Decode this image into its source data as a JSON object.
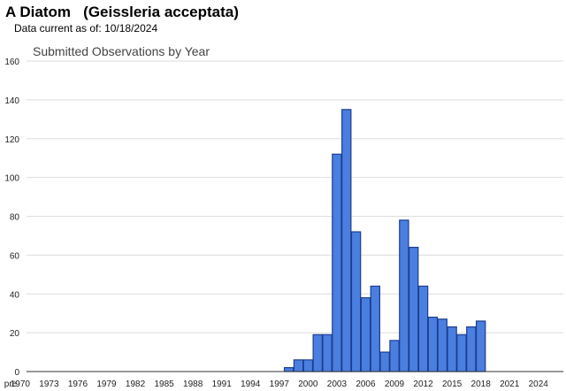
{
  "header": {
    "species_title": "A Diatom   (Geissleria acceptata)",
    "data_current_label": "Data current as of:",
    "data_current_date": "10/18/2024"
  },
  "chart_data": {
    "type": "bar",
    "title": "Submitted Observations by Year",
    "xlabel": "",
    "ylabel": "",
    "ylim": [
      0,
      160
    ],
    "yticks": [
      0,
      20,
      40,
      60,
      80,
      100,
      120,
      140,
      160
    ],
    "grid": true,
    "bar_color": "#4a7fe0",
    "bar_edge_color": "#1c3d8f",
    "categories": [
      "pre",
      "1970",
      "1971",
      "1972",
      "1973",
      "1974",
      "1975",
      "1976",
      "1977",
      "1978",
      "1979",
      "1980",
      "1981",
      "1982",
      "1983",
      "1984",
      "1985",
      "1986",
      "1987",
      "1988",
      "1989",
      "1990",
      "1991",
      "1992",
      "1993",
      "1994",
      "1995",
      "1996",
      "1997",
      "1998",
      "1999",
      "2000",
      "2001",
      "2002",
      "2003",
      "2004",
      "2005",
      "2006",
      "2007",
      "2008",
      "2009",
      "2010",
      "2011",
      "2012",
      "2013",
      "2014",
      "2015",
      "2016",
      "2017",
      "2018",
      "2019",
      "2020",
      "2021",
      "2022",
      "2023",
      "2024"
    ],
    "x_tick_labels": [
      "pre",
      "1970",
      "1973",
      "1976",
      "1979",
      "1982",
      "1985",
      "1988",
      "1991",
      "1994",
      "1997",
      "2000",
      "2003",
      "2006",
      "2009",
      "2012",
      "2015",
      "2018",
      "2021",
      "2024"
    ],
    "values": [
      0,
      0,
      0,
      0,
      0,
      0,
      0,
      0,
      0,
      0,
      0,
      0,
      0,
      0,
      0,
      0,
      0,
      0,
      0,
      0,
      0,
      0,
      0,
      0,
      0,
      0,
      0,
      0,
      0,
      2,
      6,
      6,
      19,
      19,
      112,
      135,
      72,
      38,
      44,
      10,
      16,
      78,
      64,
      44,
      28,
      27,
      23,
      19,
      23,
      26,
      0,
      0,
      0,
      0,
      0,
      0
    ]
  }
}
